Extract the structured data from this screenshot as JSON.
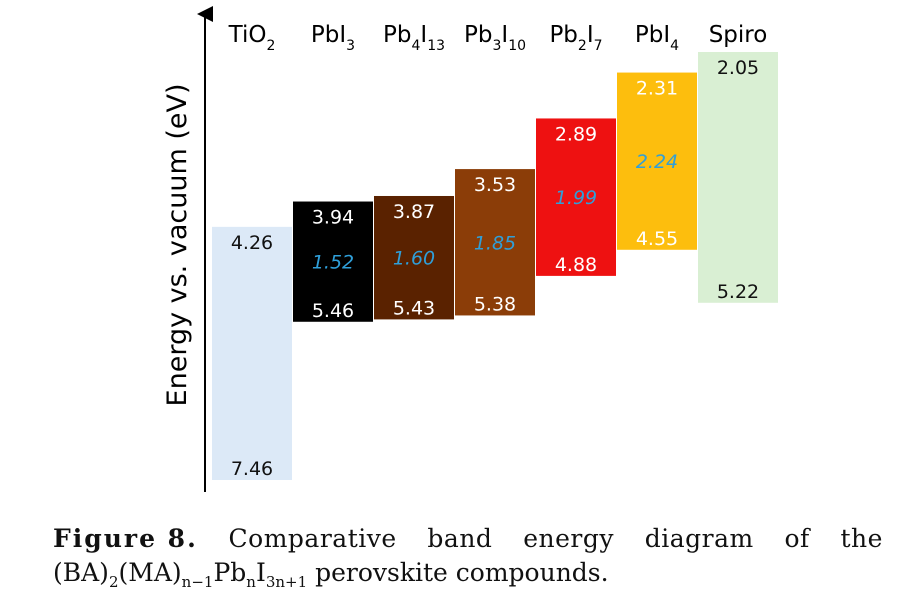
{
  "chart_data": {
    "type": "band_diagram",
    "ylabel": "Energy vs. vacuum (eV)",
    "y_axis_direction": "energy increases upward; values are depths below vacuum",
    "ylim": [
      1.55,
      7.55
    ],
    "compounds": [
      {
        "name": "TiO",
        "sub": "2",
        "cb": 4.26,
        "vb": 7.46,
        "cb_label": "4.26",
        "vb_label": "7.46",
        "gap_label": null,
        "color": "#dce9f7",
        "text_color": "#111111"
      },
      {
        "name": "PbI",
        "sub": "3",
        "cb": 3.94,
        "vb": 5.46,
        "cb_label": "3.94",
        "vb_label": "5.46",
        "gap_label": "1.52",
        "color": "#000000",
        "text_color": "#ffffff"
      },
      {
        "name": "Pb",
        "sub": "4",
        "name2": "I",
        "sub2": "13",
        "cb": 3.87,
        "vb": 5.43,
        "cb_label": "3.87",
        "vb_label": "5.43",
        "gap_label": "1.60",
        "color": "#5a2200",
        "text_color": "#ffffff"
      },
      {
        "name": "Pb",
        "sub": "3",
        "name2": "I",
        "sub2": "10",
        "cb": 3.53,
        "vb": 5.38,
        "cb_label": "3.53",
        "vb_label": "5.38",
        "gap_label": "1.85",
        "color": "#8b3d08",
        "text_color": "#ffffff"
      },
      {
        "name": "Pb",
        "sub": "2",
        "name2": "I",
        "sub2": "7",
        "cb": 2.89,
        "vb": 4.88,
        "cb_label": "2.89",
        "vb_label": "4.88",
        "gap_label": "1.99",
        "color": "#ee1111",
        "text_color": "#ffffff"
      },
      {
        "name": "PbI",
        "sub": "4",
        "cb": 2.31,
        "vb": 4.55,
        "cb_label": "2.31",
        "vb_label": "4.55",
        "gap_label": "2.24",
        "color": "#fdbe0d",
        "text_color": "#ffffff"
      },
      {
        "name": "Spiro",
        "sub": "",
        "cb": 2.05,
        "vb": 5.22,
        "cb_label": "2.05",
        "vb_label": "5.22",
        "gap_label": null,
        "color": "#d9efd3",
        "text_color": "#111111"
      }
    ],
    "gap_text_color": "#2f9fd9",
    "axis_color": "#000000"
  },
  "caption": {
    "label": "Figure 8.",
    "words": [
      "Comparative",
      "band",
      "energy",
      "diagram",
      "of",
      "the"
    ],
    "line2": {
      "p1": "(BA)",
      "s1": "2",
      "p2": "(MA)",
      "s2": "n−1",
      "p3": "Pb",
      "s3": "n",
      "p4": "I",
      "s4": "3n+1",
      "p5": " perovskite compounds."
    }
  }
}
